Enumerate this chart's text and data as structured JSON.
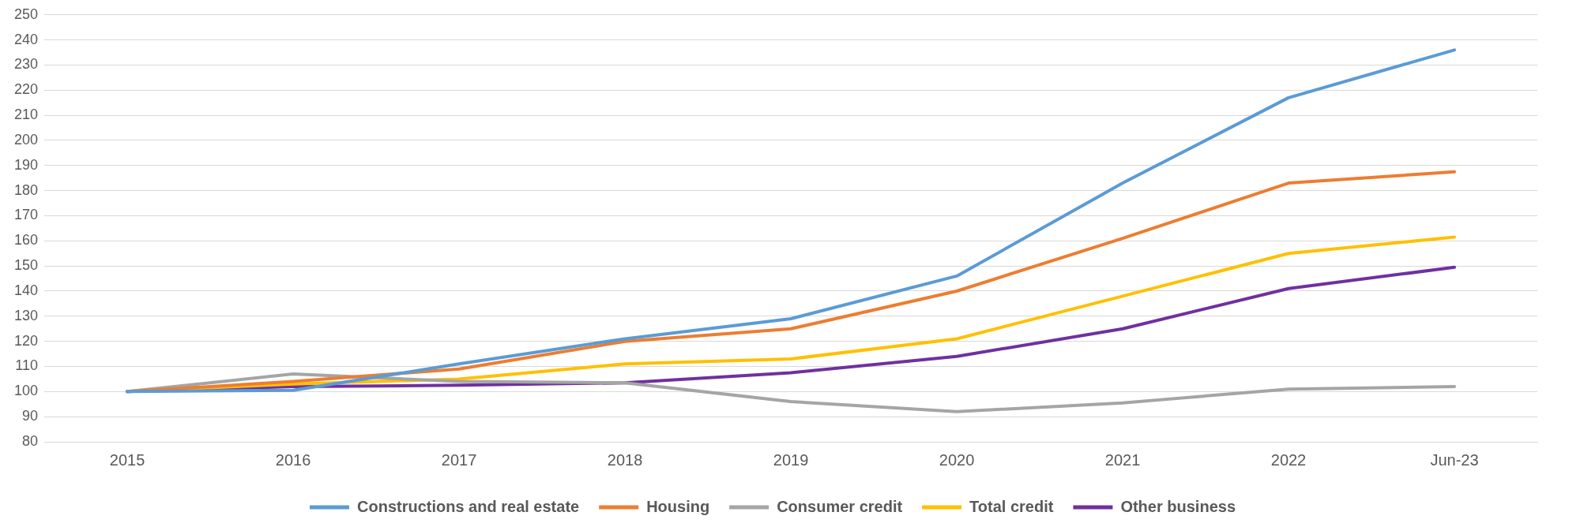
{
  "chart_data": {
    "type": "line",
    "categories": [
      "2015",
      "2016",
      "2017",
      "2018",
      "2019",
      "2020",
      "2021",
      "2022",
      "Jun-23"
    ],
    "series": [
      {
        "name": "Constructions and real estate",
        "color": "#5b9bd5",
        "values": [
          100,
          100.5,
          111,
          121,
          129,
          146,
          183,
          217,
          236
        ]
      },
      {
        "name": "Housing",
        "color": "#ed7d31",
        "values": [
          100,
          104,
          109,
          120,
          125,
          140,
          161,
          183,
          187.5
        ]
      },
      {
        "name": "Consumer credit",
        "color": "#a5a5a5",
        "values": [
          100,
          107,
          104,
          103.5,
          96,
          92,
          95.5,
          101,
          102
        ]
      },
      {
        "name": "Total credit",
        "color": "#ffc000",
        "values": [
          100,
          103,
          105,
          111,
          113,
          121,
          138,
          155,
          161.5
        ]
      },
      {
        "name": "Other business",
        "color": "#7030a0",
        "values": [
          100,
          102,
          102.5,
          103.5,
          107.5,
          114,
          125,
          141,
          149.5
        ]
      }
    ],
    "ylim": [
      80,
      250
    ],
    "yticks": [
      80,
      90,
      100,
      110,
      120,
      130,
      140,
      150,
      160,
      170,
      180,
      190,
      200,
      210,
      220,
      230,
      240,
      250
    ],
    "grid": "y",
    "legend": "bottom",
    "marker": "none",
    "line_style": "solid"
  }
}
